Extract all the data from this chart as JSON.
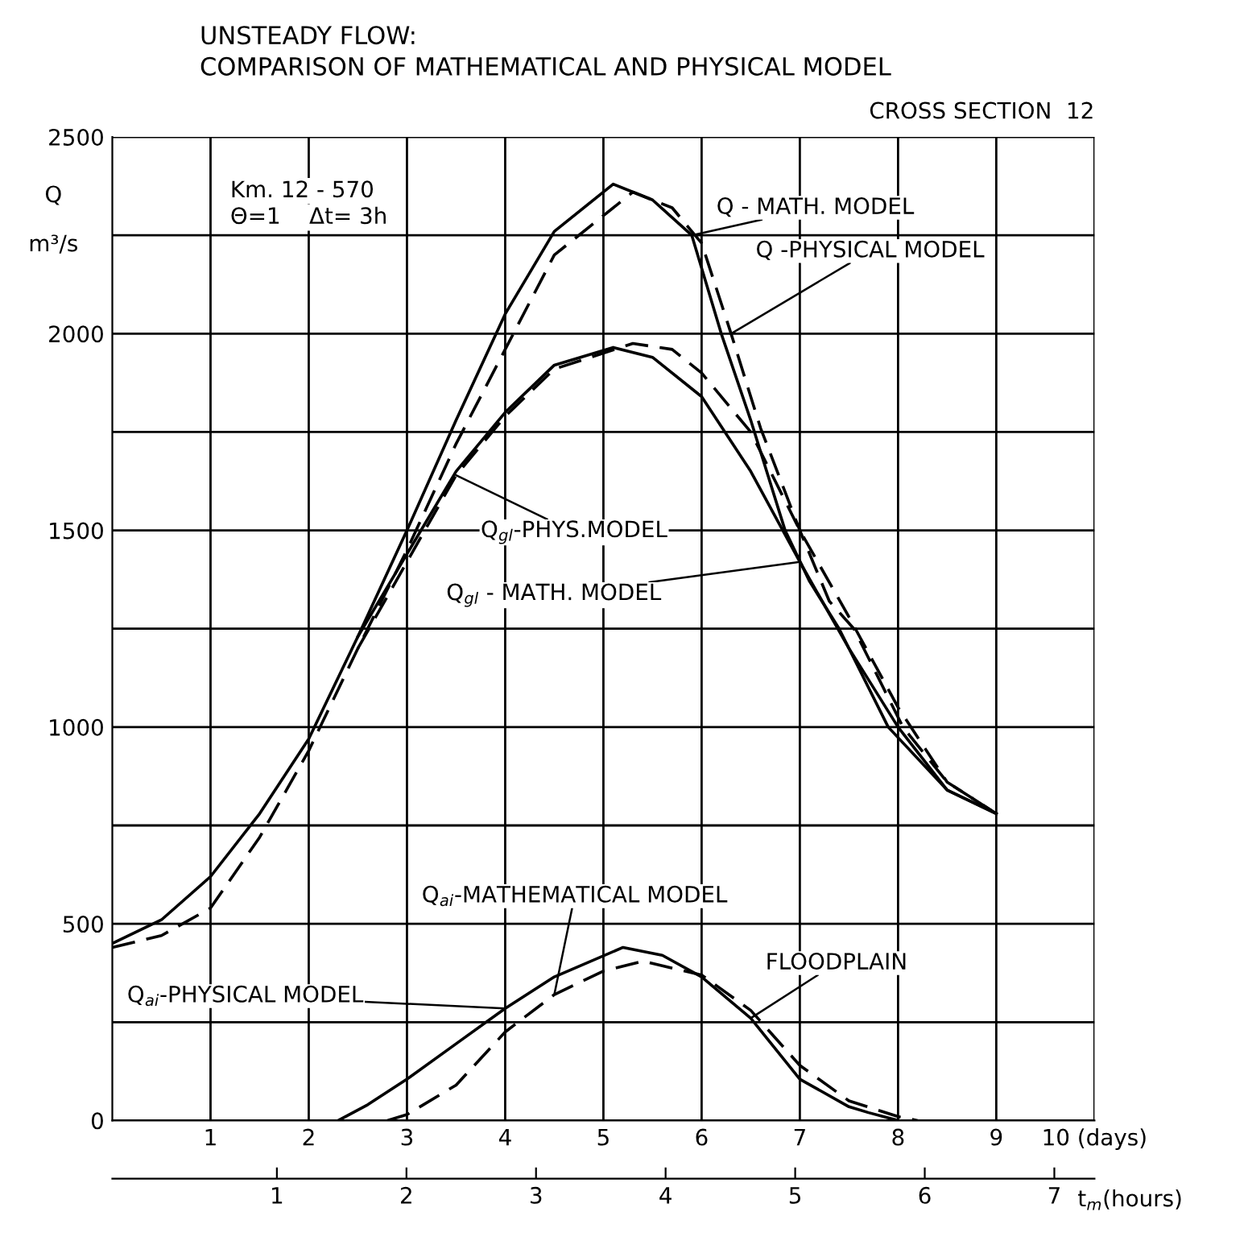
{
  "chart_data": {
    "type": "line",
    "title": "UNSTEADY FLOW:",
    "subtitle": "COMPARISON OF MATHEMATICAL AND PHYSICAL MODEL",
    "ylabel": "Q m³/s",
    "x2label": "t$_{m}$(hours)",
    "xlim": [
      0,
      10
    ],
    "xticks": [
      1,
      2,
      3,
      4,
      5,
      6,
      7,
      8,
      9,
      {
        "value": 10,
        "label": "10 (days)"
      }
    ],
    "x2lim": [
      -0.27,
      7.31
    ],
    "x2ticks": [
      1,
      2,
      3,
      4,
      5,
      6,
      7
    ],
    "ylim": [
      0,
      2500
    ],
    "yticks": [
      0,
      {
        "value": 250,
        "label": null
      },
      500,
      {
        "value": 750,
        "label": null
      },
      1000,
      {
        "value": 1250,
        "label": null
      },
      1500,
      {
        "value": 1750,
        "label": null
      },
      2000,
      {
        "value": 2250,
        "label": null
      },
      2500
    ],
    "grid": true,
    "series": [
      {
        "color": "#000000",
        "line_style": "solid",
        "x": [
          0,
          0.5,
          1,
          1.5,
          2,
          2.5,
          3,
          3.5,
          4,
          4.5,
          5.1,
          5.5,
          5.9,
          6.2,
          6.5,
          6.85,
          7.1,
          7.4,
          7.9,
          8.5,
          9
        ],
        "values": [
          450,
          510,
          620,
          780,
          970,
          1230,
          1500,
          1780,
          2050,
          2260,
          2380,
          2340,
          2250,
          2000,
          1780,
          1500,
          1370,
          1250,
          1000,
          840,
          780
        ]
      },
      {
        "color": "#000000",
        "line_style": "dashed",
        "x": [
          0,
          0.5,
          1,
          1.5,
          2,
          2.5,
          3,
          3.5,
          4,
          4.5,
          5.3,
          5.7,
          6,
          6.3,
          6.6,
          7,
          7.3,
          7.55,
          8.05,
          8.5,
          9
        ],
        "values": [
          440,
          470,
          540,
          720,
          940,
          1200,
          1450,
          1720,
          1960,
          2200,
          2360,
          2320,
          2230,
          2000,
          1760,
          1500,
          1320,
          1250,
          1000,
          860,
          780
        ]
      },
      {
        "color": "#000000",
        "line_style": "solid",
        "x": [
          2.5,
          3,
          3.5,
          4,
          4.5,
          5.1,
          5.5,
          6,
          6.5,
          7,
          7.5,
          8,
          8.5,
          9
        ],
        "values": [
          1230,
          1440,
          1650,
          1800,
          1920,
          1965,
          1940,
          1840,
          1650,
          1420,
          1200,
          1000,
          840,
          780
        ]
      },
      {
        "color": "#000000",
        "line_style": "dashed",
        "x": [
          2.5,
          3,
          3.5,
          4,
          4.5,
          5.3,
          5.7,
          6,
          6.5,
          7,
          7.5,
          8,
          8.5,
          9
        ],
        "values": [
          1200,
          1420,
          1640,
          1790,
          1910,
          1975,
          1960,
          1900,
          1750,
          1500,
          1280,
          1050,
          860,
          780
        ]
      },
      {
        "color": "#000000",
        "line_style": "solid",
        "x": [
          2.3,
          2.6,
          3,
          3.5,
          4,
          4.5,
          5.2,
          5.6,
          6,
          6.5,
          7,
          7.5,
          7.7,
          8
        ],
        "values": [
          0,
          40,
          105,
          195,
          285,
          365,
          440,
          420,
          365,
          260,
          105,
          35,
          20,
          0
        ]
      },
      {
        "color": "#000000",
        "line_style": "dashed",
        "x": [
          2.8,
          3,
          3.5,
          4,
          4.5,
          5,
          5.4,
          6,
          6.5,
          7,
          7.5,
          8,
          8.2
        ],
        "values": [
          0,
          15,
          90,
          225,
          320,
          380,
          405,
          370,
          280,
          140,
          50,
          10,
          0
        ]
      }
    ],
    "annotations": [
      "CROSS SECTION  12",
      "Km. 12 - 570",
      "Θ=1    Δt= 3h",
      {
        "text": "Q - MATH. MODEL",
        "x": 5.9,
        "y": 2250
      },
      {
        "text": "Q -PHYSICAL MODEL",
        "x": 6.3,
        "y": 2000
      },
      {
        "text": "Q$_{gl}$-PHYS.MODEL",
        "x": 3.5,
        "y": 1640
      },
      {
        "text": "Q$_{gl}$ - MATH. MODEL",
        "x": 7,
        "y": 1420
      },
      {
        "text": "Q$_{ai}$-MATHEMATICAL MODEL",
        "x": 4.5,
        "y": 320
      },
      {
        "text": "Q$_{ai}$-PHYSICAL MODEL",
        "x": 4,
        "y": 285
      },
      {
        "text": "FLOODPLAIN",
        "x": 6.5,
        "y": 260
      }
    ]
  }
}
